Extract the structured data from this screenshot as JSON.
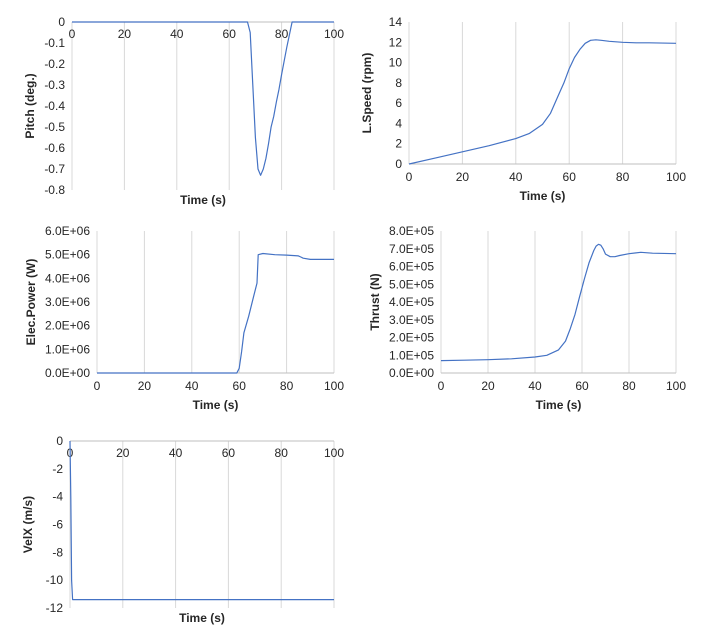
{
  "colors": {
    "series": "#4472c4",
    "grid": "#d9d9d9",
    "text": "#262626"
  },
  "chart_data": [
    {
      "type": "line",
      "xlabel": "Time (s)",
      "ylabel": "Pitch (deg.)",
      "xlim": [
        0,
        100
      ],
      "ylim": [
        -0.8,
        0
      ],
      "x_ticks": [
        "0",
        "20",
        "40",
        "60",
        "80",
        "100"
      ],
      "y_ticks": [
        "0",
        "-0.1",
        "-0.2",
        "-0.3",
        "-0.4",
        "-0.5",
        "-0.6",
        "-0.7",
        "-0.8"
      ],
      "x_tick_position": "top",
      "grid": "vertical",
      "series": [
        {
          "x": [
            0,
            60,
            65,
            67,
            68,
            69,
            70,
            71,
            72,
            73,
            74,
            75,
            76,
            77,
            78,
            79,
            80,
            82,
            84,
            100
          ],
          "y": [
            0,
            0,
            0,
            0,
            -0.05,
            -0.3,
            -0.55,
            -0.7,
            -0.73,
            -0.7,
            -0.65,
            -0.58,
            -0.5,
            -0.45,
            -0.38,
            -0.32,
            -0.25,
            -0.12,
            0,
            0
          ]
        }
      ]
    },
    {
      "type": "line",
      "xlabel": "Time (s)",
      "ylabel": "L.Speed (rpm)",
      "xlim": [
        0,
        100
      ],
      "ylim": [
        0,
        14
      ],
      "x_ticks": [
        "0",
        "20",
        "40",
        "60",
        "80",
        "100"
      ],
      "y_ticks": [
        "0",
        "2",
        "4",
        "6",
        "8",
        "10",
        "12",
        "14"
      ],
      "x_tick_position": "bottom",
      "grid": "vertical",
      "series": [
        {
          "x": [
            0,
            10,
            20,
            30,
            40,
            45,
            50,
            53,
            56,
            58,
            60,
            62,
            64,
            66,
            68,
            70,
            72,
            75,
            80,
            85,
            90,
            100
          ],
          "y": [
            0,
            0.6,
            1.2,
            1.8,
            2.5,
            3.0,
            3.9,
            5.0,
            6.8,
            8.0,
            9.4,
            10.5,
            11.3,
            11.9,
            12.2,
            12.25,
            12.2,
            12.1,
            12.0,
            11.95,
            11.95,
            11.9
          ]
        }
      ]
    },
    {
      "type": "line",
      "xlabel": "Time (s)",
      "ylabel": "Elec.Power (W)",
      "xlim": [
        0,
        100
      ],
      "ylim": [
        0,
        6000000
      ],
      "x_ticks": [
        "0",
        "20",
        "40",
        "60",
        "80",
        "100"
      ],
      "y_ticks": [
        "0.0E+00",
        "1.0E+06",
        "2.0E+06",
        "3.0E+06",
        "4.0E+06",
        "5.0E+06",
        "6.0E+06"
      ],
      "x_tick_position": "bottom",
      "grid": "vertical",
      "series": [
        {
          "x": [
            0,
            55,
            59,
            60,
            61,
            62,
            64,
            66,
            67,
            67.5,
            68,
            70,
            75,
            80,
            85,
            86,
            87,
            90,
            95,
            100
          ],
          "y": [
            0,
            0,
            0,
            200000,
            900000,
            1700000,
            2400000,
            3200000,
            3600000,
            3800000,
            5000000,
            5050000,
            5000000,
            4980000,
            4950000,
            4900000,
            4850000,
            4800000,
            4800000,
            4800000
          ]
        }
      ]
    },
    {
      "type": "line",
      "xlabel": "Time (s)",
      "ylabel": "Thrust (N)",
      "xlim": [
        0,
        100
      ],
      "ylim": [
        0,
        800000
      ],
      "x_ticks": [
        "0",
        "20",
        "40",
        "60",
        "80",
        "100"
      ],
      "y_ticks": [
        "0.0E+00",
        "1.0E+05",
        "2.0E+05",
        "3.0E+05",
        "4.0E+05",
        "5.0E+05",
        "6.0E+05",
        "7.0E+05",
        "8.0E+05"
      ],
      "x_tick_position": "bottom",
      "grid": "vertical",
      "series": [
        {
          "x": [
            0,
            10,
            20,
            30,
            40,
            45,
            50,
            53,
            55,
            57,
            59,
            61,
            63,
            65,
            66,
            67,
            68,
            69,
            70,
            72,
            74,
            76,
            80,
            85,
            90,
            100
          ],
          "y": [
            70000,
            72000,
            75000,
            80000,
            90000,
            100000,
            130000,
            180000,
            250000,
            330000,
            430000,
            530000,
            620000,
            690000,
            715000,
            725000,
            720000,
            700000,
            670000,
            655000,
            655000,
            662000,
            672000,
            680000,
            675000,
            672000
          ]
        }
      ]
    },
    {
      "type": "line",
      "xlabel": "Time (s)",
      "ylabel": "VelX (m/s)",
      "xlim": [
        0,
        100
      ],
      "ylim": [
        -12,
        0
      ],
      "x_ticks": [
        "0",
        "20",
        "40",
        "60",
        "80",
        "100"
      ],
      "y_ticks": [
        "0",
        "-2",
        "-4",
        "-6",
        "-8",
        "-10",
        "-12"
      ],
      "x_tick_position": "top",
      "grid": "vertical",
      "series": [
        {
          "x": [
            0,
            0.3,
            0.6,
            1,
            100
          ],
          "y": [
            0,
            -4,
            -10,
            -11.4,
            -11.4
          ]
        }
      ]
    }
  ]
}
